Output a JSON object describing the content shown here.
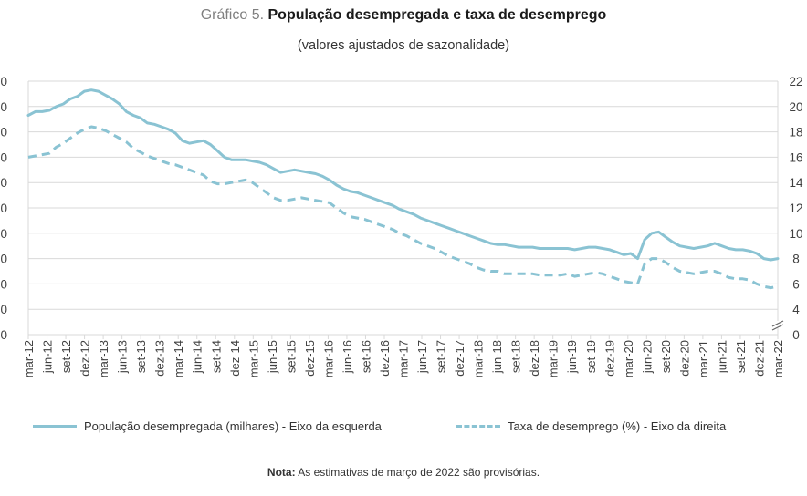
{
  "title_prefix": "Gráfico 5.",
  "title": "População desempregada e taxa de desemprego",
  "subtitle": "(valores ajustados de sazonalidade)",
  "legend": {
    "series1": "População desempregada (milhares) - Eixo da esquerda",
    "series2": "Taxa de desemprego (%) - Eixo da direita"
  },
  "note_label": "Nota:",
  "note_text": "As estimativas de março de 2022 são provisórias.",
  "chart_data": {
    "type": "line",
    "x_tick_labels": [
      "mar-12",
      "jun-12",
      "set-12",
      "dez-12",
      "mar-13",
      "jun-13",
      "set-13",
      "dez-13",
      "mar-14",
      "jun-14",
      "set-14",
      "dez-14",
      "mar-15",
      "jun-15",
      "set-15",
      "dez-15",
      "mar-16",
      "jun-16",
      "set-16",
      "dez-16",
      "mar-17",
      "jun-17",
      "set-17",
      "dez-17",
      "mar-18",
      "jun-18",
      "set-18",
      "dez-18",
      "mar-19",
      "jun-19",
      "set-19",
      "dez-19",
      "mar-20",
      "jun-20",
      "set-20",
      "dez-20",
      "mar-21",
      "jun-21",
      "set-21",
      "dez-21",
      "mar-22"
    ],
    "left_axis": {
      "ticks": [
        "0",
        "0",
        "0",
        "0",
        "0",
        "0",
        "0",
        "0",
        "0",
        "0",
        "0"
      ]
    },
    "right_axis": {
      "ticks": [
        "0",
        "4",
        "6",
        "8",
        "10",
        "12",
        "14",
        "16",
        "18",
        "20",
        "22"
      ],
      "break_marker": true
    },
    "series": [
      {
        "name": "População desempregada (milhares) - Eixo da esquerda",
        "style": "solid",
        "color": "#8ac3d3",
        "axis": "left",
        "points_in_right_axis_units": [
          [
            0,
            19.3
          ],
          [
            1,
            19.6
          ],
          [
            2,
            19.6
          ],
          [
            3,
            19.7
          ],
          [
            4,
            20.0
          ],
          [
            5,
            20.2
          ],
          [
            6,
            20.6
          ],
          [
            7,
            20.8
          ],
          [
            8,
            21.2
          ],
          [
            9,
            21.3
          ],
          [
            10,
            21.2
          ],
          [
            11,
            20.9
          ],
          [
            12,
            20.6
          ],
          [
            13,
            20.2
          ],
          [
            14,
            19.6
          ],
          [
            15,
            19.3
          ],
          [
            16,
            19.1
          ],
          [
            17,
            18.7
          ],
          [
            18,
            18.6
          ],
          [
            19,
            18.4
          ],
          [
            20,
            18.2
          ],
          [
            21,
            17.9
          ],
          [
            22,
            17.3
          ],
          [
            23,
            17.1
          ],
          [
            24,
            17.2
          ],
          [
            25,
            17.3
          ],
          [
            26,
            17.0
          ],
          [
            27,
            16.5
          ],
          [
            28,
            16.0
          ],
          [
            29,
            15.8
          ],
          [
            30,
            15.8
          ],
          [
            31,
            15.8
          ],
          [
            32,
            15.7
          ],
          [
            33,
            15.6
          ],
          [
            34,
            15.4
          ],
          [
            35,
            15.1
          ],
          [
            36,
            14.8
          ],
          [
            37,
            14.9
          ],
          [
            38,
            15.0
          ],
          [
            39,
            14.9
          ],
          [
            40,
            14.8
          ],
          [
            41,
            14.7
          ],
          [
            42,
            14.5
          ],
          [
            43,
            14.2
          ],
          [
            44,
            13.8
          ],
          [
            45,
            13.5
          ],
          [
            46,
            13.3
          ],
          [
            47,
            13.2
          ],
          [
            48,
            13.0
          ],
          [
            49,
            12.8
          ],
          [
            50,
            12.6
          ],
          [
            51,
            12.4
          ],
          [
            52,
            12.2
          ],
          [
            53,
            11.9
          ],
          [
            54,
            11.7
          ],
          [
            55,
            11.5
          ],
          [
            56,
            11.2
          ],
          [
            57,
            11.0
          ],
          [
            58,
            10.8
          ],
          [
            59,
            10.6
          ],
          [
            60,
            10.4
          ],
          [
            61,
            10.2
          ],
          [
            62,
            10.0
          ],
          [
            63,
            9.8
          ],
          [
            64,
            9.6
          ],
          [
            65,
            9.4
          ],
          [
            66,
            9.2
          ],
          [
            67,
            9.1
          ],
          [
            68,
            9.1
          ],
          [
            69,
            9.0
          ],
          [
            70,
            8.9
          ],
          [
            71,
            8.9
          ],
          [
            72,
            8.9
          ],
          [
            73,
            8.8
          ],
          [
            74,
            8.8
          ],
          [
            75,
            8.8
          ],
          [
            76,
            8.8
          ],
          [
            77,
            8.8
          ],
          [
            78,
            8.7
          ],
          [
            79,
            8.8
          ],
          [
            80,
            8.9
          ],
          [
            81,
            8.9
          ],
          [
            82,
            8.8
          ],
          [
            83,
            8.7
          ],
          [
            84,
            8.5
          ],
          [
            85,
            8.3
          ],
          [
            86,
            8.4
          ],
          [
            87,
            8.0
          ],
          [
            88,
            9.5
          ],
          [
            89,
            10.0
          ],
          [
            90,
            10.1
          ],
          [
            91,
            9.7
          ],
          [
            92,
            9.3
          ],
          [
            93,
            9.0
          ],
          [
            94,
            8.9
          ],
          [
            95,
            8.8
          ],
          [
            96,
            8.9
          ],
          [
            97,
            9.0
          ],
          [
            98,
            9.2
          ],
          [
            99,
            9.0
          ],
          [
            100,
            8.8
          ],
          [
            101,
            8.7
          ],
          [
            102,
            8.7
          ],
          [
            103,
            8.6
          ],
          [
            104,
            8.4
          ],
          [
            105,
            8.0
          ],
          [
            106,
            7.9
          ],
          [
            107,
            8.0
          ]
        ]
      },
      {
        "name": "Taxa de desemprego (%) - Eixo da direita",
        "style": "dashed",
        "color": "#8ac3d3",
        "axis": "right",
        "points": [
          [
            0,
            16.0
          ],
          [
            1,
            16.1
          ],
          [
            2,
            16.2
          ],
          [
            3,
            16.3
          ],
          [
            4,
            16.8
          ],
          [
            5,
            17.1
          ],
          [
            6,
            17.5
          ],
          [
            7,
            17.9
          ],
          [
            8,
            18.2
          ],
          [
            9,
            18.4
          ],
          [
            10,
            18.3
          ],
          [
            11,
            18.1
          ],
          [
            12,
            17.8
          ],
          [
            13,
            17.5
          ],
          [
            14,
            17.2
          ],
          [
            15,
            16.7
          ],
          [
            16,
            16.4
          ],
          [
            17,
            16.1
          ],
          [
            18,
            15.9
          ],
          [
            19,
            15.7
          ],
          [
            20,
            15.5
          ],
          [
            21,
            15.4
          ],
          [
            22,
            15.2
          ],
          [
            23,
            15.0
          ],
          [
            24,
            14.8
          ],
          [
            25,
            14.6
          ],
          [
            26,
            14.1
          ],
          [
            27,
            13.9
          ],
          [
            28,
            13.9
          ],
          [
            29,
            14.0
          ],
          [
            30,
            14.1
          ],
          [
            31,
            14.2
          ],
          [
            32,
            14.0
          ],
          [
            33,
            13.6
          ],
          [
            34,
            13.2
          ],
          [
            35,
            12.8
          ],
          [
            36,
            12.6
          ],
          [
            37,
            12.6
          ],
          [
            38,
            12.7
          ],
          [
            39,
            12.8
          ],
          [
            40,
            12.7
          ],
          [
            41,
            12.6
          ],
          [
            42,
            12.5
          ],
          [
            43,
            12.4
          ],
          [
            44,
            12.0
          ],
          [
            45,
            11.6
          ],
          [
            46,
            11.3
          ],
          [
            47,
            11.2
          ],
          [
            48,
            11.1
          ],
          [
            49,
            10.9
          ],
          [
            50,
            10.7
          ],
          [
            51,
            10.5
          ],
          [
            52,
            10.3
          ],
          [
            53,
            10.0
          ],
          [
            54,
            9.8
          ],
          [
            55,
            9.5
          ],
          [
            56,
            9.2
          ],
          [
            57,
            9.0
          ],
          [
            58,
            8.8
          ],
          [
            59,
            8.5
          ],
          [
            60,
            8.2
          ],
          [
            61,
            8.0
          ],
          [
            62,
            7.8
          ],
          [
            63,
            7.6
          ],
          [
            64,
            7.3
          ],
          [
            65,
            7.1
          ],
          [
            66,
            7.0
          ],
          [
            67,
            7.0
          ],
          [
            68,
            6.8
          ],
          [
            69,
            6.8
          ],
          [
            70,
            6.8
          ],
          [
            71,
            6.8
          ],
          [
            72,
            6.8
          ],
          [
            73,
            6.7
          ],
          [
            74,
            6.7
          ],
          [
            75,
            6.7
          ],
          [
            76,
            6.7
          ],
          [
            77,
            6.8
          ],
          [
            78,
            6.6
          ],
          [
            79,
            6.7
          ],
          [
            80,
            6.8
          ],
          [
            81,
            6.9
          ],
          [
            82,
            6.8
          ],
          [
            83,
            6.6
          ],
          [
            84,
            6.4
          ],
          [
            85,
            6.2
          ],
          [
            86,
            6.1
          ],
          [
            87,
            6.0
          ],
          [
            88,
            7.6
          ],
          [
            89,
            8.0
          ],
          [
            90,
            8.0
          ],
          [
            91,
            7.7
          ],
          [
            92,
            7.3
          ],
          [
            93,
            7.0
          ],
          [
            94,
            6.9
          ],
          [
            95,
            6.8
          ],
          [
            96,
            6.9
          ],
          [
            97,
            7.0
          ],
          [
            98,
            7.0
          ],
          [
            99,
            6.8
          ],
          [
            100,
            6.5
          ],
          [
            101,
            6.4
          ],
          [
            102,
            6.4
          ],
          [
            103,
            6.3
          ],
          [
            104,
            6.0
          ],
          [
            105,
            5.8
          ],
          [
            106,
            5.7
          ],
          [
            107,
            5.8
          ]
        ]
      }
    ]
  }
}
